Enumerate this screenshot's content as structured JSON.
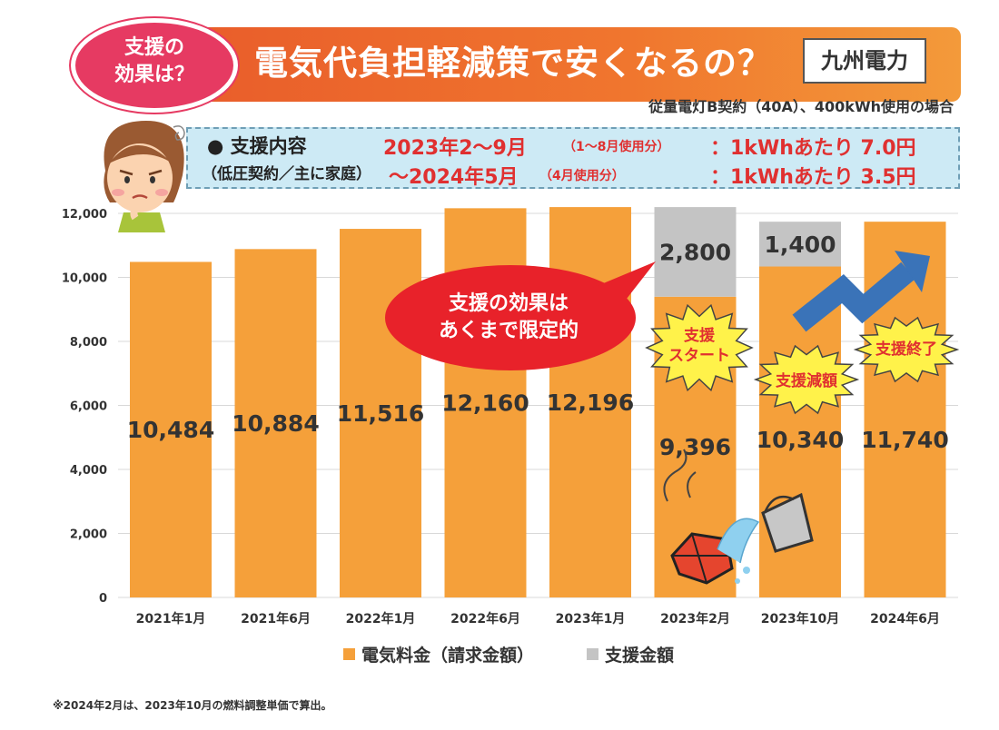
{
  "header": {
    "badge_line1": "支援の",
    "badge_line2": "効果は？",
    "title": "電気代負担軽減策で安くなるの？",
    "company": "九州電力",
    "subnote": "従量電灯B契約（40A）、400kWh使用の場合"
  },
  "info": {
    "heading": "● 支援内容",
    "subheading": "（低圧契約／主に家庭）",
    "period1": "2023年2～9月",
    "period1_note": "（1～8月使用分）",
    "rate1": "：1kWhあたり 7.0円",
    "period2": "～2024年5月",
    "period2_note": "（4月使用分）",
    "rate2": "：1kWhあたり 3.5円"
  },
  "bubble": {
    "line1": "支援の効果は",
    "line2": "あくまで限定的"
  },
  "bursts": {
    "start_line1": "支援",
    "start_line2": "スタート",
    "reduce": "支援減額",
    "end": "支援終了"
  },
  "legend": {
    "bill": "電気料金（請求金額）",
    "support": "支援金額"
  },
  "footnote": "※2024年2月は、2023年10月の燃料調整単価で算出。",
  "colors": {
    "bill": "#f5a03a",
    "support": "#c4c4c4",
    "accent_red": "#e03030",
    "arrow": "#3a73b8"
  },
  "chart_data": {
    "type": "bar",
    "stacked": true,
    "categories": [
      "2021年1月",
      "2021年6月",
      "2022年1月",
      "2022年6月",
      "2023年1月",
      "2023年2月",
      "2023年10月",
      "2024年6月"
    ],
    "series": [
      {
        "name": "電気料金（請求金額）",
        "values": [
          10484,
          10884,
          11516,
          12160,
          12196,
          9396,
          10340,
          11740
        ]
      },
      {
        "name": "支援金額",
        "values": [
          0,
          0,
          0,
          0,
          0,
          2800,
          1400,
          0
        ]
      }
    ],
    "value_labels": {
      "bill": [
        "10,484",
        "10,884",
        "11,516",
        "12,160",
        "12,196",
        "9,396",
        "10,340",
        "11,740"
      ],
      "support": [
        "",
        "",
        "",
        "",
        "",
        "2,800",
        "1,400",
        ""
      ]
    },
    "yticks": [
      0,
      2000,
      4000,
      6000,
      8000,
      10000,
      12000
    ],
    "ytick_labels": [
      "0",
      "2,000",
      "4,000",
      "6,000",
      "8,000",
      "10,000",
      "12,000"
    ],
    "ylim": [
      0,
      12000
    ],
    "grid": true,
    "legend_position": "bottom"
  }
}
